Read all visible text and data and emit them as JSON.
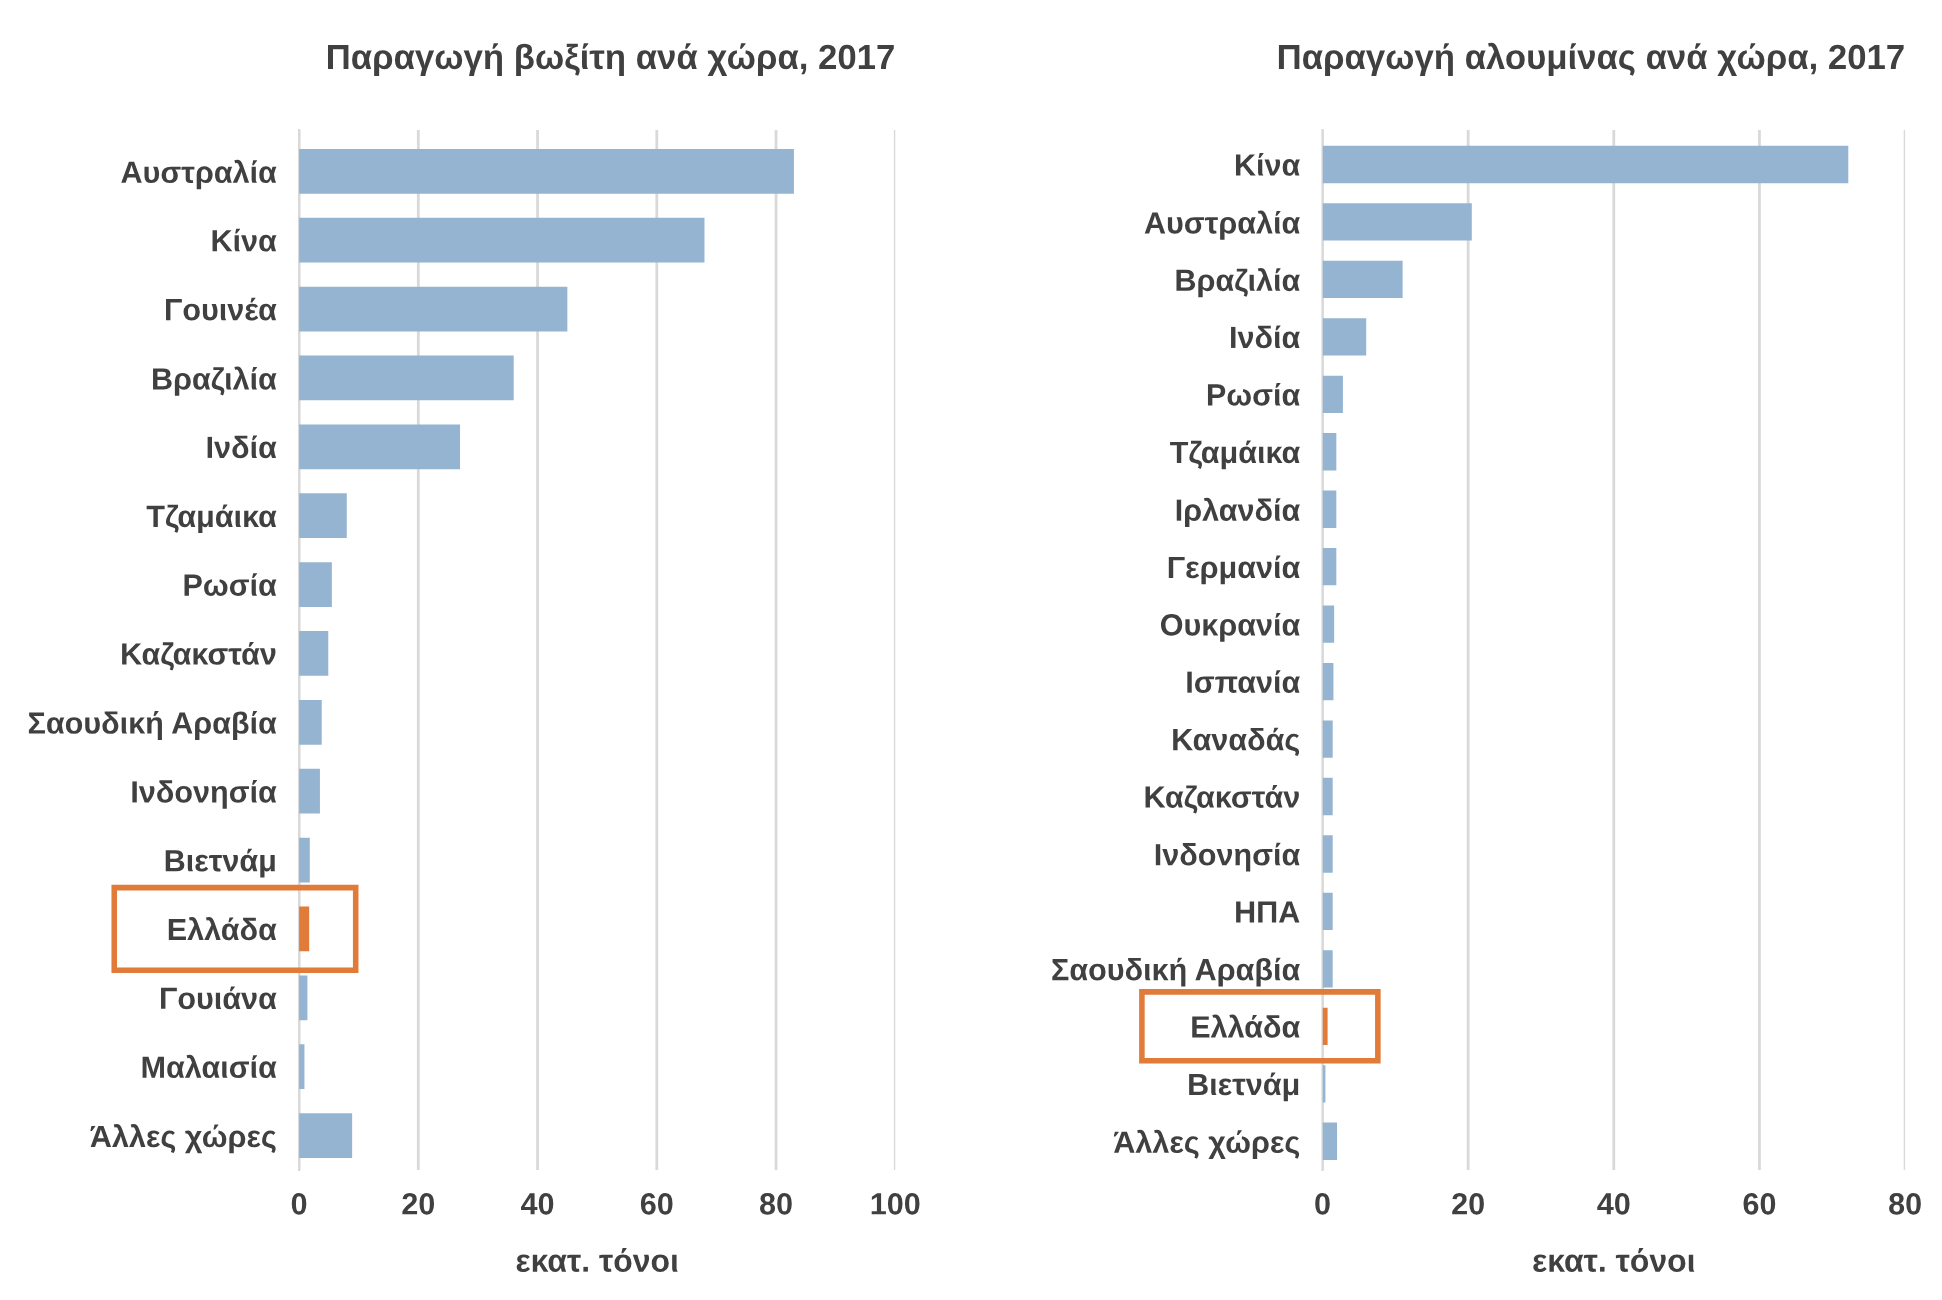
{
  "chart_data": [
    {
      "type": "bar",
      "orientation": "horizontal",
      "title": "Παραγωγή βωξίτη ανά χώρα, 2017",
      "xlabel": "εκατ. τόνοι",
      "categories": [
        "Αυστραλία",
        "Κίνα",
        "Γουινέα",
        "Βραζιλία",
        "Ινδία",
        "Τζαμάικα",
        "Ρωσία",
        "Καζακστάν",
        "Σαουδική Αραβία",
        "Ινδονησία",
        "Βιετνάμ",
        "Ελλάδα",
        "Γουιάνα",
        "Μαλαισία",
        "Άλλες χώρες"
      ],
      "values": [
        83,
        68,
        45,
        36,
        27,
        8,
        5.5,
        4.9,
        3.8,
        3.5,
        1.8,
        1.7,
        1.4,
        0.9,
        8.9
      ],
      "colors": [
        "#94b4d2",
        "#94b4d2",
        "#94b4d2",
        "#94b4d2",
        "#94b4d2",
        "#94b4d2",
        "#94b4d2",
        "#94b4d2",
        "#94b4d2",
        "#94b4d2",
        "#94b4d2",
        "#e07b39",
        "#94b4d2",
        "#94b4d2",
        "#94b4d2"
      ],
      "xlim": [
        0,
        100
      ],
      "xticks": [
        0,
        20,
        40,
        60,
        80,
        100
      ],
      "grid": "x"
    },
    {
      "type": "bar",
      "orientation": "horizontal",
      "title": "Παραγωγή αλουμίνας ανά χώρα, 2017",
      "xlabel": "εκατ. τόνοι",
      "categories": [
        "Κίνα",
        "Αυστραλία",
        "Βραζιλία",
        "Ινδία",
        "Ρωσία",
        "Τζαμάικα",
        "Ιρλανδία",
        "Γερμανία",
        "Ουκρανία",
        "Ισπανία",
        "Καναδάς",
        "Καζακστάν",
        "Ινδονησία",
        "ΗΠΑ",
        "Σαουδική Αραβία",
        "Ελλάδα",
        "Βιετνάμ",
        "Άλλες χώρες"
      ],
      "values": [
        72.2,
        20.5,
        11,
        6,
        2.8,
        1.9,
        1.9,
        1.9,
        1.6,
        1.5,
        1.4,
        1.4,
        1.4,
        1.4,
        1.4,
        0.7,
        0.4,
        2.0
      ],
      "colors": [
        "#94b4d2",
        "#94b4d2",
        "#94b4d2",
        "#94b4d2",
        "#94b4d2",
        "#94b4d2",
        "#94b4d2",
        "#94b4d2",
        "#94b4d2",
        "#94b4d2",
        "#94b4d2",
        "#94b4d2",
        "#94b4d2",
        "#94b4d2",
        "#94b4d2",
        "#e07b39",
        "#94b4d2",
        "#94b4d2"
      ],
      "xlim": [
        0,
        80
      ],
      "xticks": [
        0,
        20,
        40,
        60,
        80
      ],
      "grid": "x"
    }
  ]
}
